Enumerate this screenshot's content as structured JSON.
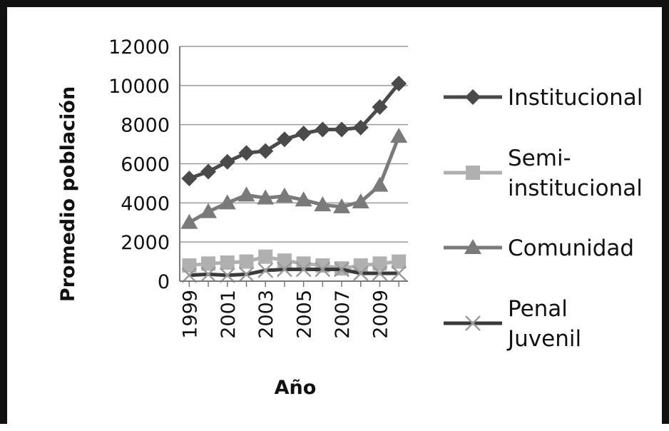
{
  "chart_data": {
    "type": "line",
    "xlabel": "Año",
    "ylabel": "Promedio población",
    "ylim": [
      0,
      12000
    ],
    "yticks": [
      0,
      2000,
      4000,
      6000,
      8000,
      10000,
      12000
    ],
    "x": [
      1999,
      2000,
      2001,
      2002,
      2003,
      2004,
      2005,
      2006,
      2007,
      2008,
      2009,
      2010
    ],
    "xtick_labels": [
      "1999",
      "2001",
      "2003",
      "2005",
      "2007",
      "2009"
    ],
    "grid": true,
    "legend": "right",
    "series": [
      {
        "name_lines": [
          "Institucional"
        ],
        "marker": "diamond",
        "color": "#4a4a4a",
        "values": [
          5250,
          5600,
          6100,
          6550,
          6650,
          7250,
          7550,
          7750,
          7750,
          7850,
          8900,
          10100
        ]
      },
      {
        "name_lines": [
          "Semi-",
          "institucional"
        ],
        "marker": "square",
        "color": "#b0b0b0",
        "values": [
          800,
          900,
          950,
          1000,
          1250,
          1050,
          900,
          800,
          650,
          800,
          900,
          1000
        ]
      },
      {
        "name_lines": [
          "Comunidad"
        ],
        "marker": "triangle",
        "color": "#7a7a7a",
        "values": [
          3000,
          3550,
          4000,
          4400,
          4250,
          4350,
          4150,
          3900,
          3800,
          4050,
          4900,
          7400
        ]
      },
      {
        "name_lines": [
          "Penal",
          "Juvenil"
        ],
        "marker": "x",
        "color": "#3a3a3a",
        "values": [
          300,
          350,
          300,
          350,
          550,
          600,
          600,
          600,
          600,
          400,
          400,
          400
        ]
      }
    ]
  }
}
